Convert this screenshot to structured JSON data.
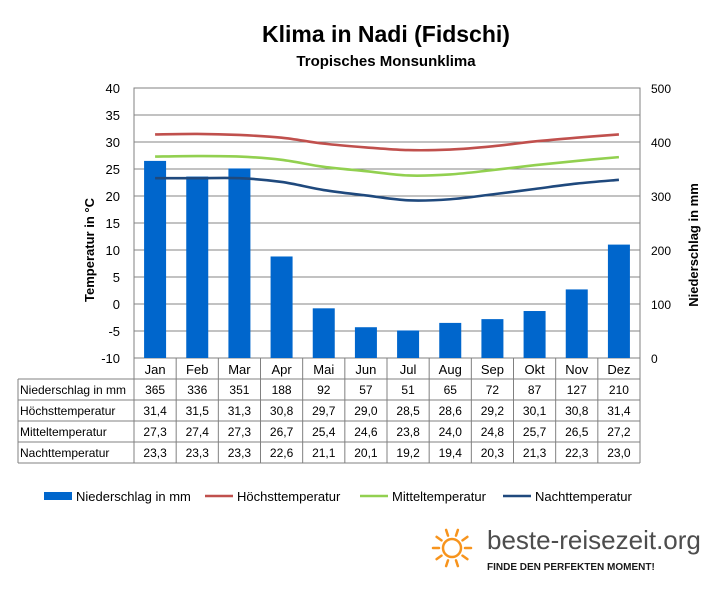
{
  "chart_data": {
    "type": "bar",
    "title": "Klima in Nadi (Fidschi)",
    "subtitle": "Tropisches Monsunklima",
    "categories": [
      "Jan",
      "Feb",
      "Mar",
      "Apr",
      "Mai",
      "Jun",
      "Jul",
      "Aug",
      "Sep",
      "Okt",
      "Nov",
      "Dez"
    ],
    "y_left": {
      "label": "Temperatur in °C",
      "min": -10,
      "max": 40,
      "step": 5
    },
    "y_right": {
      "label": "Niederschlag in mm",
      "min": 0,
      "max": 500,
      "step": 100
    },
    "grid": true,
    "legend_position": "bottom",
    "bar_series": {
      "name": "Niederschlag in mm",
      "axis": "right",
      "color": "#0066cc",
      "values": [
        365,
        336,
        351,
        188,
        92,
        57,
        51,
        65,
        72,
        87,
        127,
        210
      ]
    },
    "line_series": [
      {
        "name": "Höchsttemperatur",
        "axis": "left",
        "color": "#c0504d",
        "values": [
          31.4,
          31.5,
          31.3,
          30.8,
          29.7,
          29.0,
          28.5,
          28.6,
          29.2,
          30.1,
          30.8,
          31.4
        ]
      },
      {
        "name": "Mitteltemperatur",
        "axis": "left",
        "color": "#92d050",
        "values": [
          27.3,
          27.4,
          27.3,
          26.7,
          25.4,
          24.6,
          23.8,
          24.0,
          24.8,
          25.7,
          26.5,
          27.2
        ]
      },
      {
        "name": "Nachttemperatur",
        "axis": "left",
        "color": "#1f497d",
        "values": [
          23.3,
          23.3,
          23.3,
          22.6,
          21.1,
          20.1,
          19.2,
          19.4,
          20.3,
          21.3,
          22.3,
          23.0
        ]
      }
    ],
    "table": {
      "row_labels": [
        "Niederschlag in mm",
        "Höchsttemperatur",
        "Mitteltemperatur",
        "Nachttemperatur"
      ],
      "rows": [
        [
          "365",
          "336",
          "351",
          "188",
          "92",
          "57",
          "51",
          "65",
          "72",
          "87",
          "127",
          "210"
        ],
        [
          "31,4",
          "31,5",
          "31,3",
          "30,8",
          "29,7",
          "29,0",
          "28,5",
          "28,6",
          "29,2",
          "30,1",
          "30,8",
          "31,4"
        ],
        [
          "27,3",
          "27,4",
          "27,3",
          "26,7",
          "25,4",
          "24,6",
          "23,8",
          "24,0",
          "24,8",
          "25,7",
          "26,5",
          "27,2"
        ],
        [
          "23,3",
          "23,3",
          "23,3",
          "22,6",
          "21,1",
          "20,1",
          "19,2",
          "19,4",
          "20,3",
          "21,3",
          "22,3",
          "23,0"
        ]
      ]
    }
  },
  "brand": {
    "name": "beste-reisezeit.org",
    "tagline": "FINDE DEN PERFEKTEN MOMENT!",
    "sun_color": "#f7941d"
  }
}
